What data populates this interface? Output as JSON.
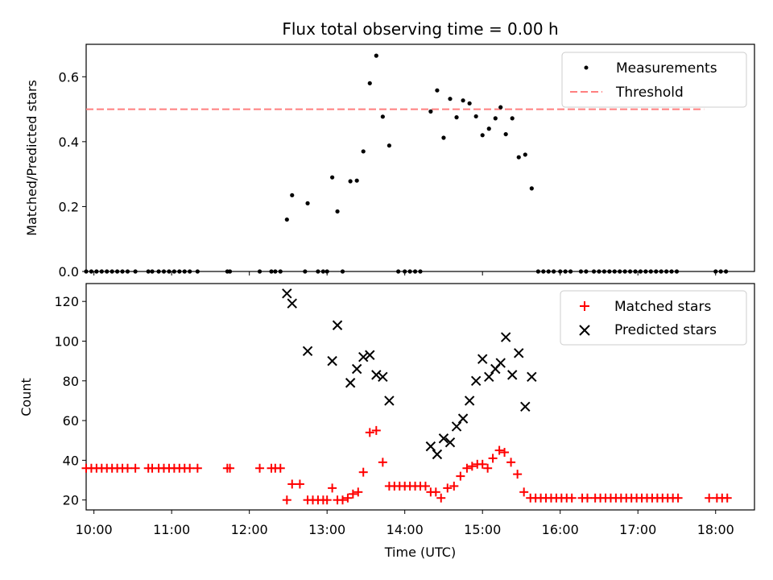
{
  "figure": {
    "title": "Flux total observing time = 0.00 h",
    "xlabel": "Time (UTC)"
  },
  "colors": {
    "measurements": "#000000",
    "threshold": "#ff7f7f",
    "matched": "#ff0000",
    "predicted": "#000000"
  },
  "chart_data": [
    {
      "type": "scatter",
      "panel": "top",
      "ylabel": "Matched/Predicted stars",
      "xlim": [
        "09:54",
        "18:30"
      ],
      "ylim": [
        0,
        0.7
      ],
      "y_ticks": [
        "0.0",
        "0.2",
        "0.4",
        "0.6"
      ],
      "x_ticks": [
        "10:00",
        "11:00",
        "12:00",
        "13:00",
        "14:00",
        "15:00",
        "16:00",
        "17:00",
        "18:00"
      ],
      "legend": {
        "position": "top-right",
        "entries": [
          "Measurements",
          "Threshold"
        ]
      },
      "threshold": {
        "name": "Threshold",
        "y": 0.5,
        "x_range": [
          "09:54",
          "17:51"
        ],
        "style": "dashed"
      },
      "series": [
        {
          "name": "Measurements",
          "marker": "dot",
          "points": [
            [
              "09:54",
              0
            ],
            [
              "09:58",
              0
            ],
            [
              "10:02",
              0
            ],
            [
              "10:06",
              0
            ],
            [
              "10:10",
              0
            ],
            [
              "10:14",
              0
            ],
            [
              "10:18",
              0
            ],
            [
              "10:22",
              0
            ],
            [
              "10:26",
              0
            ],
            [
              "10:32",
              0
            ],
            [
              "10:42",
              0
            ],
            [
              "10:45",
              0
            ],
            [
              "10:50",
              0
            ],
            [
              "10:54",
              0
            ],
            [
              "10:58",
              0
            ],
            [
              "11:02",
              0
            ],
            [
              "11:06",
              0
            ],
            [
              "11:10",
              0
            ],
            [
              "11:14",
              0
            ],
            [
              "11:20",
              0
            ],
            [
              "11:43",
              0
            ],
            [
              "11:45",
              0
            ],
            [
              "12:08",
              0
            ],
            [
              "12:17",
              0
            ],
            [
              "12:20",
              0
            ],
            [
              "12:24",
              0
            ],
            [
              "12:29",
              0.16
            ],
            [
              "12:33",
              0.235
            ],
            [
              "12:43",
              0
            ],
            [
              "12:45",
              0.21
            ],
            [
              "12:53",
              0
            ],
            [
              "12:57",
              0
            ],
            [
              "13:00",
              0
            ],
            [
              "13:04",
              0.29
            ],
            [
              "13:08",
              0.185
            ],
            [
              "13:12",
              0
            ],
            [
              "13:18",
              0.278
            ],
            [
              "13:23",
              0.28
            ],
            [
              "13:28",
              0.37
            ],
            [
              "13:33",
              0.58
            ],
            [
              "13:38",
              0.665
            ],
            [
              "13:43",
              0.477
            ],
            [
              "13:48",
              0.388
            ],
            [
              "13:55",
              0
            ],
            [
              "14:00",
              0
            ],
            [
              "14:04",
              0
            ],
            [
              "14:08",
              0
            ],
            [
              "14:12",
              0
            ],
            [
              "14:20",
              0.493
            ],
            [
              "14:25",
              0.558
            ],
            [
              "14:30",
              0.412
            ],
            [
              "14:35",
              0.532
            ],
            [
              "14:40",
              0.475
            ],
            [
              "14:45",
              0.527
            ],
            [
              "14:50",
              0.518
            ],
            [
              "14:55",
              0.478
            ],
            [
              "15:00",
              0.42
            ],
            [
              "15:05",
              0.44
            ],
            [
              "15:10",
              0.472
            ],
            [
              "15:14",
              0.506
            ],
            [
              "15:18",
              0.423
            ],
            [
              "15:23",
              0.472
            ],
            [
              "15:28",
              0.352
            ],
            [
              "15:33",
              0.36
            ],
            [
              "15:38",
              0.256
            ],
            [
              "15:43",
              0
            ],
            [
              "15:47",
              0
            ],
            [
              "15:51",
              0
            ],
            [
              "15:55",
              0
            ],
            [
              "16:00",
              0
            ],
            [
              "16:04",
              0
            ],
            [
              "16:08",
              0
            ],
            [
              "16:16",
              0
            ],
            [
              "16:20",
              0
            ],
            [
              "16:26",
              0
            ],
            [
              "16:30",
              0
            ],
            [
              "16:34",
              0
            ],
            [
              "16:38",
              0
            ],
            [
              "16:42",
              0
            ],
            [
              "16:46",
              0
            ],
            [
              "16:50",
              0
            ],
            [
              "16:54",
              0
            ],
            [
              "16:58",
              0
            ],
            [
              "17:02",
              0
            ],
            [
              "17:06",
              0
            ],
            [
              "17:10",
              0
            ],
            [
              "17:14",
              0
            ],
            [
              "17:18",
              0
            ],
            [
              "17:22",
              0
            ],
            [
              "17:26",
              0
            ],
            [
              "17:30",
              0
            ],
            [
              "18:00",
              0
            ],
            [
              "18:04",
              0
            ],
            [
              "18:08",
              0
            ]
          ]
        }
      ]
    },
    {
      "type": "scatter",
      "panel": "bottom",
      "ylabel": "Count",
      "xlim": [
        "09:54",
        "18:30"
      ],
      "ylim": [
        15,
        129
      ],
      "y_ticks": [
        "20",
        "40",
        "60",
        "80",
        "100",
        "120"
      ],
      "x_ticks": [
        "10:00",
        "11:00",
        "12:00",
        "13:00",
        "14:00",
        "15:00",
        "16:00",
        "17:00",
        "18:00"
      ],
      "legend": {
        "position": "top-right",
        "entries": [
          "Matched stars",
          "Predicted stars"
        ]
      },
      "series": [
        {
          "name": "Matched stars",
          "marker": "plus",
          "points": [
            [
              "09:54",
              36
            ],
            [
              "09:58",
              36
            ],
            [
              "10:02",
              36
            ],
            [
              "10:06",
              36
            ],
            [
              "10:10",
              36
            ],
            [
              "10:14",
              36
            ],
            [
              "10:18",
              36
            ],
            [
              "10:22",
              36
            ],
            [
              "10:26",
              36
            ],
            [
              "10:32",
              36
            ],
            [
              "10:42",
              36
            ],
            [
              "10:45",
              36
            ],
            [
              "10:50",
              36
            ],
            [
              "10:54",
              36
            ],
            [
              "10:58",
              36
            ],
            [
              "11:02",
              36
            ],
            [
              "11:06",
              36
            ],
            [
              "11:10",
              36
            ],
            [
              "11:14",
              36
            ],
            [
              "11:20",
              36
            ],
            [
              "11:43",
              36
            ],
            [
              "11:45",
              36
            ],
            [
              "12:08",
              36
            ],
            [
              "12:17",
              36
            ],
            [
              "12:20",
              36
            ],
            [
              "12:24",
              36
            ],
            [
              "12:29",
              20
            ],
            [
              "12:33",
              28
            ],
            [
              "12:39",
              28
            ],
            [
              "12:45",
              20
            ],
            [
              "12:49",
              20
            ],
            [
              "12:53",
              20
            ],
            [
              "12:57",
              20
            ],
            [
              "13:00",
              20
            ],
            [
              "13:04",
              26
            ],
            [
              "13:08",
              20
            ],
            [
              "13:12",
              20
            ],
            [
              "13:16",
              21
            ],
            [
              "13:20",
              23
            ],
            [
              "13:24",
              24
            ],
            [
              "13:28",
              34
            ],
            [
              "13:33",
              54
            ],
            [
              "13:38",
              55
            ],
            [
              "13:43",
              39
            ],
            [
              "13:48",
              27
            ],
            [
              "13:52",
              27
            ],
            [
              "13:56",
              27
            ],
            [
              "14:00",
              27
            ],
            [
              "14:04",
              27
            ],
            [
              "14:08",
              27
            ],
            [
              "14:12",
              27
            ],
            [
              "14:16",
              27
            ],
            [
              "14:20",
              24
            ],
            [
              "14:24",
              24
            ],
            [
              "14:28",
              21
            ],
            [
              "14:33",
              26
            ],
            [
              "14:38",
              27
            ],
            [
              "14:43",
              32
            ],
            [
              "14:48",
              36
            ],
            [
              "14:52",
              37
            ],
            [
              "14:56",
              38
            ],
            [
              "15:00",
              38
            ],
            [
              "15:04",
              36
            ],
            [
              "15:08",
              41
            ],
            [
              "15:13",
              45
            ],
            [
              "15:17",
              44
            ],
            [
              "15:22",
              39
            ],
            [
              "15:27",
              33
            ],
            [
              "15:32",
              24
            ],
            [
              "15:37",
              21
            ],
            [
              "15:41",
              21
            ],
            [
              "15:45",
              21
            ],
            [
              "15:49",
              21
            ],
            [
              "15:53",
              21
            ],
            [
              "15:57",
              21
            ],
            [
              "16:01",
              21
            ],
            [
              "16:05",
              21
            ],
            [
              "16:09",
              21
            ],
            [
              "16:17",
              21
            ],
            [
              "16:21",
              21
            ],
            [
              "16:27",
              21
            ],
            [
              "16:31",
              21
            ],
            [
              "16:35",
              21
            ],
            [
              "16:39",
              21
            ],
            [
              "16:43",
              21
            ],
            [
              "16:47",
              21
            ],
            [
              "16:51",
              21
            ],
            [
              "16:55",
              21
            ],
            [
              "16:59",
              21
            ],
            [
              "17:03",
              21
            ],
            [
              "17:07",
              21
            ],
            [
              "17:11",
              21
            ],
            [
              "17:15",
              21
            ],
            [
              "17:19",
              21
            ],
            [
              "17:23",
              21
            ],
            [
              "17:27",
              21
            ],
            [
              "17:31",
              21
            ],
            [
              "17:55",
              21
            ],
            [
              "18:01",
              21
            ],
            [
              "18:05",
              21
            ],
            [
              "18:09",
              21
            ]
          ]
        },
        {
          "name": "Predicted stars",
          "marker": "x",
          "points": [
            [
              "12:29",
              124
            ],
            [
              "12:33",
              119
            ],
            [
              "12:45",
              95
            ],
            [
              "13:04",
              90
            ],
            [
              "13:08",
              108
            ],
            [
              "13:18",
              79
            ],
            [
              "13:23",
              86
            ],
            [
              "13:28",
              92
            ],
            [
              "13:33",
              93
            ],
            [
              "13:38",
              83
            ],
            [
              "13:43",
              82
            ],
            [
              "13:48",
              70
            ],
            [
              "14:20",
              47
            ],
            [
              "14:25",
              43
            ],
            [
              "14:30",
              51
            ],
            [
              "14:35",
              49
            ],
            [
              "14:40",
              57
            ],
            [
              "14:45",
              61
            ],
            [
              "14:50",
              70
            ],
            [
              "14:55",
              80
            ],
            [
              "15:00",
              91
            ],
            [
              "15:05",
              82
            ],
            [
              "15:10",
              86
            ],
            [
              "15:14",
              89
            ],
            [
              "15:18",
              102
            ],
            [
              "15:23",
              83
            ],
            [
              "15:28",
              94
            ],
            [
              "15:33",
              67
            ],
            [
              "15:38",
              82
            ]
          ]
        }
      ]
    }
  ]
}
